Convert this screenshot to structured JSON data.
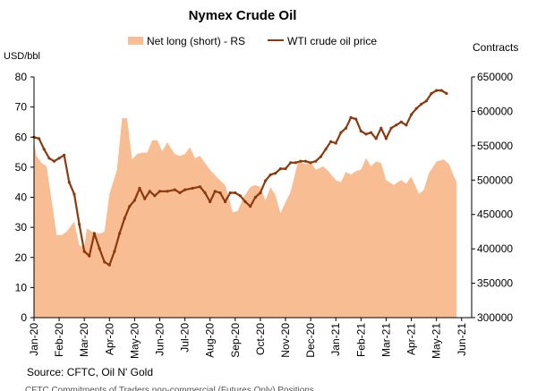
{
  "chart_data": {
    "type": "area+line",
    "title": "Nymex Crude Oil",
    "left_axis_label": "USD/bbl",
    "right_axis_label": "Contracts",
    "legend": [
      {
        "name": "Net long (short) - RS",
        "kind": "area",
        "color": "#f9bd94"
      },
      {
        "name": "WTI crude oil price",
        "kind": "line",
        "color": "#8b3a0e"
      }
    ],
    "y_left": {
      "min": 0,
      "max": 80,
      "ticks": [
        "0",
        "10",
        "20",
        "30",
        "40",
        "50",
        "60",
        "70",
        "80"
      ]
    },
    "y_right": {
      "min": 300000,
      "max": 650000,
      "ticks": [
        "300000",
        "350000",
        "400000",
        "450000",
        "500000",
        "550000",
        "600000",
        "650000"
      ]
    },
    "x_ticks": [
      "Jan-20",
      "Feb-20",
      "Mar-20",
      "Apr-20",
      "May-20",
      "Jun-20",
      "Jul-20",
      "Aug-20",
      "Sep-20",
      "Oct-20",
      "Nov-20",
      "Dec-20",
      "Jan-21",
      "Feb-21",
      "Mar-21",
      "Apr-21",
      "May-21",
      "Jun-21"
    ],
    "x_range_months": [
      0,
      17.4
    ],
    "net_long": [
      [
        0.0,
        555000
      ],
      [
        0.1,
        535000
      ],
      [
        0.3,
        525000
      ],
      [
        0.5,
        520000
      ],
      [
        0.7,
        470000
      ],
      [
        0.9,
        420000
      ],
      [
        1.1,
        420000
      ],
      [
        1.3,
        425000
      ],
      [
        1.6,
        440000
      ],
      [
        1.8,
        405000
      ],
      [
        2.0,
        403000
      ],
      [
        2.1,
        430000
      ],
      [
        2.3,
        425000
      ],
      [
        2.6,
        422000
      ],
      [
        2.8,
        425000
      ],
      [
        3.0,
        480000
      ],
      [
        3.3,
        515000
      ],
      [
        3.5,
        590000
      ],
      [
        3.7,
        590000
      ],
      [
        3.9,
        530000
      ],
      [
        4.1,
        538000
      ],
      [
        4.3,
        540000
      ],
      [
        4.5,
        540000
      ],
      [
        4.7,
        558000
      ],
      [
        4.9,
        558000
      ],
      [
        5.1,
        542000
      ],
      [
        5.3,
        555000
      ],
      [
        5.6,
        538000
      ],
      [
        5.8,
        535000
      ],
      [
        6.0,
        538000
      ],
      [
        6.2,
        548000
      ],
      [
        6.4,
        532000
      ],
      [
        6.6,
        535000
      ],
      [
        6.8,
        525000
      ],
      [
        7.0,
        515000
      ],
      [
        7.3,
        503000
      ],
      [
        7.6,
        493000
      ],
      [
        7.9,
        453000
      ],
      [
        8.1,
        455000
      ],
      [
        8.3,
        473000
      ],
      [
        8.6,
        490000
      ],
      [
        8.8,
        493000
      ],
      [
        9.0,
        490000
      ],
      [
        9.2,
        470000
      ],
      [
        9.4,
        490000
      ],
      [
        9.6,
        478000
      ],
      [
        9.8,
        452000
      ],
      [
        10.0,
        468000
      ],
      [
        10.2,
        483000
      ],
      [
        10.5,
        527000
      ],
      [
        10.8,
        523000
      ],
      [
        11.0,
        527000
      ],
      [
        11.2,
        515000
      ],
      [
        11.5,
        520000
      ],
      [
        11.7,
        513000
      ],
      [
        12.0,
        500000
      ],
      [
        12.2,
        497000
      ],
      [
        12.4,
        512000
      ],
      [
        12.6,
        508000
      ],
      [
        12.8,
        513000
      ],
      [
        13.0,
        515000
      ],
      [
        13.2,
        532000
      ],
      [
        13.4,
        520000
      ],
      [
        13.6,
        527000
      ],
      [
        13.8,
        525000
      ],
      [
        14.0,
        500000
      ],
      [
        14.3,
        493000
      ],
      [
        14.6,
        500000
      ],
      [
        14.8,
        495000
      ],
      [
        15.0,
        505000
      ],
      [
        15.3,
        480000
      ],
      [
        15.5,
        486000
      ],
      [
        15.7,
        510000
      ],
      [
        16.0,
        527000
      ],
      [
        16.3,
        530000
      ],
      [
        16.5,
        523000
      ],
      [
        16.7,
        505000
      ],
      [
        16.8,
        498000
      ]
    ],
    "wti_price": [
      [
        0.0,
        60
      ],
      [
        0.2,
        59.5
      ],
      [
        0.4,
        56
      ],
      [
        0.6,
        53
      ],
      [
        0.8,
        52
      ],
      [
        1.0,
        53
      ],
      [
        1.2,
        54
      ],
      [
        1.4,
        45
      ],
      [
        1.6,
        41
      ],
      [
        1.8,
        31
      ],
      [
        2.0,
        22
      ],
      [
        2.2,
        20.5
      ],
      [
        2.4,
        28
      ],
      [
        2.6,
        23
      ],
      [
        2.8,
        18.5
      ],
      [
        3.0,
        17.5
      ],
      [
        3.2,
        22
      ],
      [
        3.4,
        28
      ],
      [
        3.6,
        33
      ],
      [
        3.8,
        37
      ],
      [
        4.0,
        39
      ],
      [
        4.2,
        43
      ],
      [
        4.4,
        39.5
      ],
      [
        4.6,
        42
      ],
      [
        4.8,
        40.5
      ],
      [
        5.0,
        42
      ],
      [
        5.3,
        42
      ],
      [
        5.6,
        42.5
      ],
      [
        5.8,
        41.5
      ],
      [
        6.0,
        42.5
      ],
      [
        6.3,
        43
      ],
      [
        6.6,
        43.5
      ],
      [
        6.8,
        41.5
      ],
      [
        7.0,
        38.5
      ],
      [
        7.2,
        42
      ],
      [
        7.4,
        41.5
      ],
      [
        7.6,
        38.5
      ],
      [
        7.8,
        41.5
      ],
      [
        8.0,
        41.5
      ],
      [
        8.2,
        40.5
      ],
      [
        8.4,
        38.5
      ],
      [
        8.6,
        37
      ],
      [
        8.8,
        40
      ],
      [
        9.0,
        41.5
      ],
      [
        9.2,
        45.5
      ],
      [
        9.4,
        47.5
      ],
      [
        9.6,
        48
      ],
      [
        9.8,
        49.5
      ],
      [
        10.0,
        49.5
      ],
      [
        10.2,
        51.5
      ],
      [
        10.4,
        51.5
      ],
      [
        10.6,
        52
      ],
      [
        10.8,
        52
      ],
      [
        11.0,
        51.5
      ],
      [
        11.2,
        52
      ],
      [
        11.4,
        53.5
      ],
      [
        11.6,
        56
      ],
      [
        11.8,
        58.5
      ],
      [
        12.0,
        58
      ],
      [
        12.2,
        61.5
      ],
      [
        12.4,
        63
      ],
      [
        12.6,
        66.5
      ],
      [
        12.8,
        66
      ],
      [
        13.0,
        62
      ],
      [
        13.2,
        61
      ],
      [
        13.4,
        61.5
      ],
      [
        13.6,
        59.5
      ],
      [
        13.8,
        63
      ],
      [
        14.0,
        59.5
      ],
      [
        14.2,
        63
      ],
      [
        14.4,
        64
      ],
      [
        14.6,
        65
      ],
      [
        14.8,
        64
      ],
      [
        15.0,
        67.5
      ],
      [
        15.2,
        69.5
      ],
      [
        15.4,
        71
      ],
      [
        15.6,
        72
      ],
      [
        15.8,
        74.5
      ],
      [
        16.0,
        75.5
      ],
      [
        16.2,
        75.5
      ],
      [
        16.4,
        74.5
      ]
    ],
    "source": "Source: CFTC, Oil N' Gold",
    "footnote": "CFTC Commitments of Traders non-commercial (Futures Only) Positions"
  }
}
